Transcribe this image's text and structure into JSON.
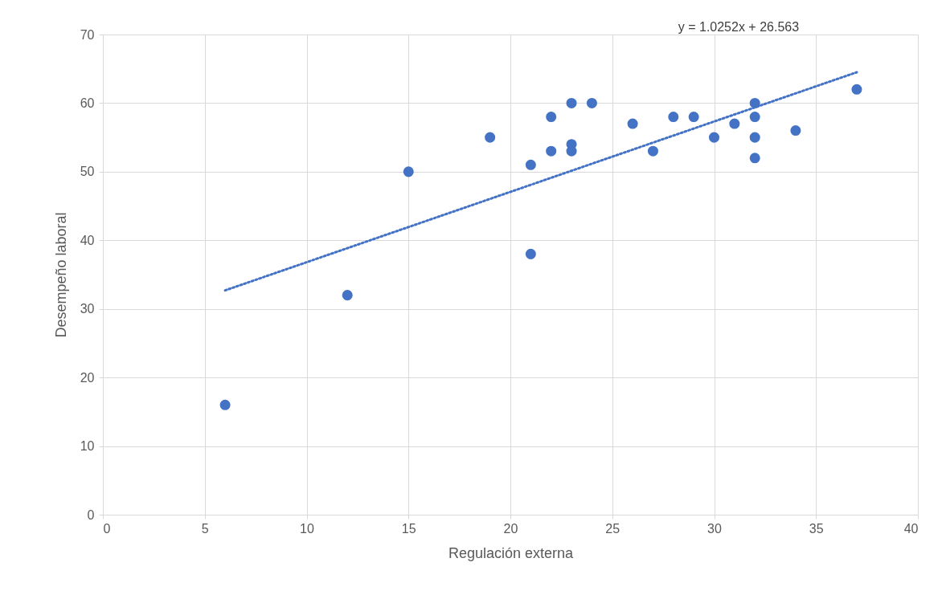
{
  "chart_data": {
    "type": "scatter",
    "xlabel": "Regulación externa",
    "ylabel": "Desempeño laboral",
    "annotations": [
      "y = 1.0252x + 26.563"
    ],
    "xlim": [
      0,
      40
    ],
    "xticks": [
      0,
      5,
      10,
      15,
      20,
      25,
      30,
      35,
      40
    ],
    "ylim": [
      0,
      70
    ],
    "yticks": [
      0,
      10,
      20,
      30,
      40,
      50,
      60,
      70
    ],
    "grid": true,
    "series": [
      {
        "marker": "circle",
        "color": "#4472c4",
        "x": [
          6,
          12,
          15,
          19,
          21,
          21,
          22,
          22,
          23,
          23,
          23,
          24,
          26,
          27,
          28,
          29,
          30,
          31,
          32,
          32,
          32,
          32,
          34,
          37
        ],
        "values": [
          16,
          32,
          50,
          55,
          51,
          38,
          58,
          53,
          60,
          54,
          53,
          60,
          57,
          53,
          58,
          58,
          55,
          57,
          60,
          58,
          55,
          52,
          56,
          62
        ]
      },
      {
        "type": "line",
        "marker": "none",
        "line_style": "dotted",
        "color": "#4472c4",
        "x": [
          6,
          37
        ],
        "values": [
          32.7,
          64.5
        ]
      }
    ]
  }
}
